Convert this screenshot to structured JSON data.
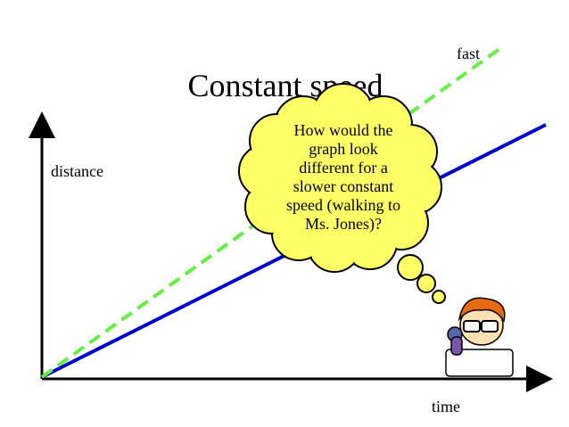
{
  "title": "Constant speed",
  "axes": {
    "y_label": "distance",
    "x_label": "time"
  },
  "lines": [
    {
      "label": "fast"
    }
  ],
  "thought_bubble": {
    "lines": [
      "How would the",
      "graph look",
      "different for a",
      "slower constant",
      "speed (walking to",
      "Ms. Jones)?"
    ]
  }
}
